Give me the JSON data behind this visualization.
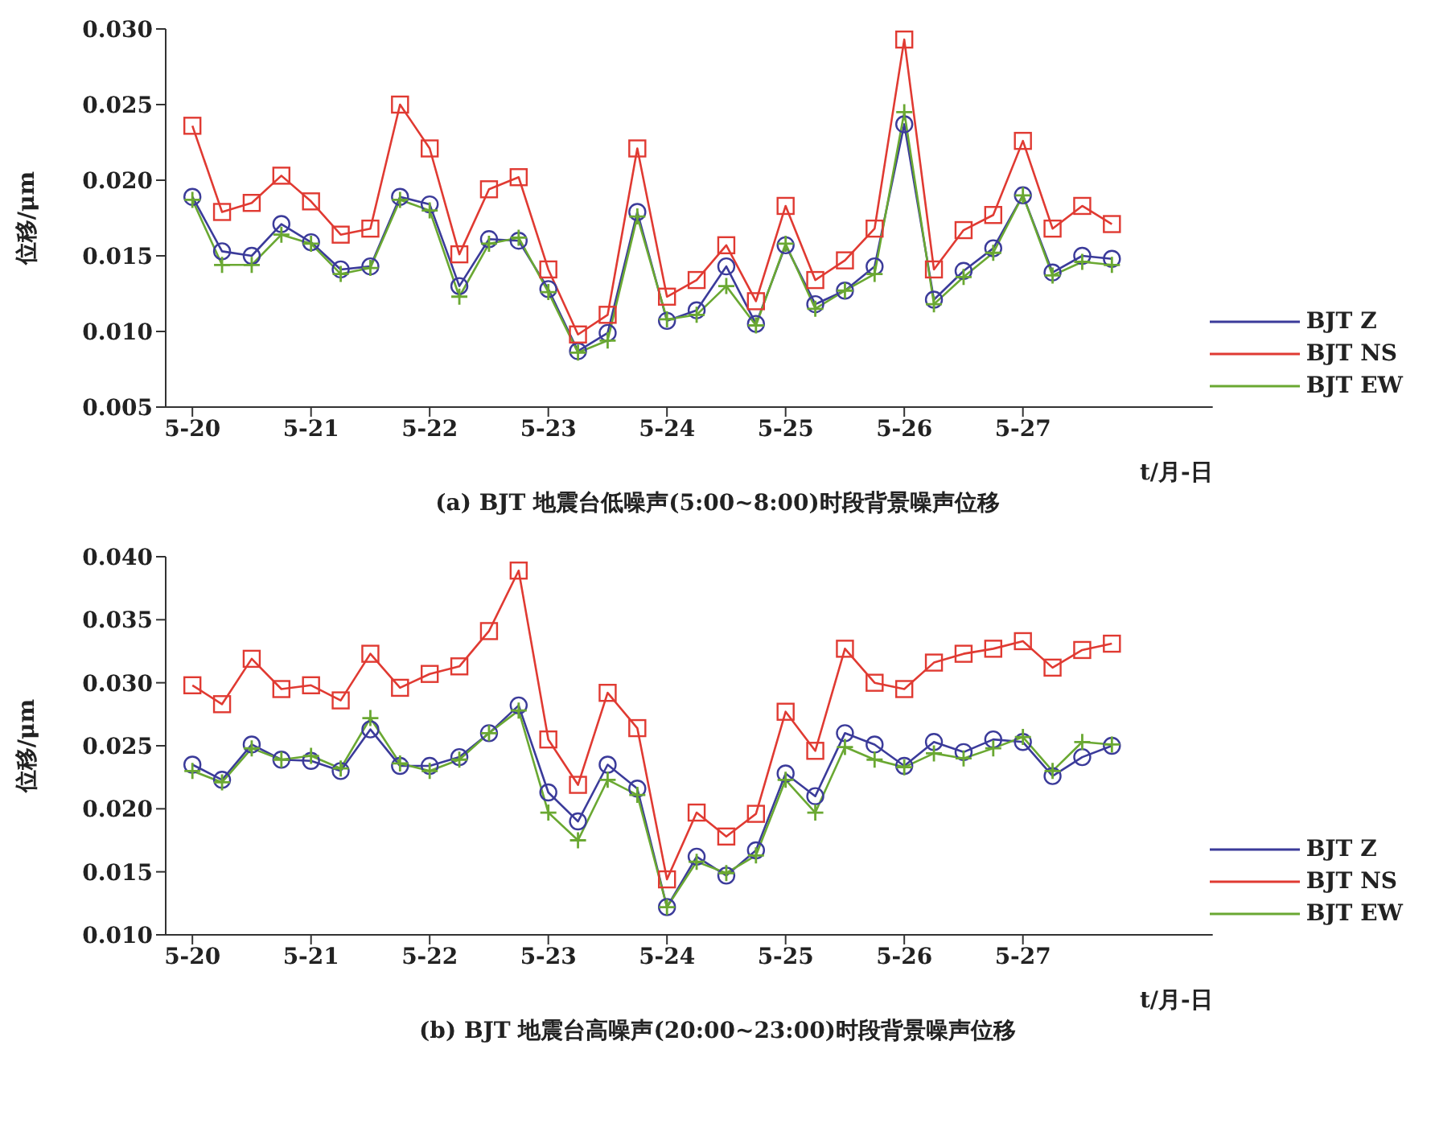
{
  "chart_data": [
    {
      "type": "line",
      "title": "(a) BJT 地震台低噪声(5:00~8:00)时段背景噪声位移",
      "xlabel": "t/月-日",
      "ylabel": "位移/μm",
      "categories": [
        "5-20",
        null,
        null,
        null,
        "5-21",
        null,
        null,
        null,
        "5-22",
        null,
        null,
        null,
        "5-23",
        null,
        null,
        null,
        "5-24",
        null,
        null,
        null,
        "5-25",
        null,
        null,
        null,
        "5-26",
        null,
        null,
        null,
        "5-27",
        null,
        null,
        null
      ],
      "series": [
        {
          "name": "BJT Z",
          "color": "#3b3b9a",
          "marker": "circle",
          "values": [
            0.0189,
            0.0153,
            0.015,
            0.0171,
            0.0159,
            0.0141,
            0.0143,
            0.0189,
            0.0184,
            0.013,
            0.0161,
            0.016,
            0.0128,
            0.0087,
            0.0099,
            0.0179,
            0.0107,
            0.0114,
            0.0143,
            0.0105,
            0.0157,
            0.0118,
            0.0127,
            0.0143,
            0.0237,
            0.0121,
            0.014,
            0.0155,
            0.019,
            0.0139,
            0.015,
            0.0148
          ]
        },
        {
          "name": "BJT NS",
          "color": "#e03a32",
          "marker": "square",
          "values": [
            0.0236,
            0.0179,
            0.0185,
            0.0203,
            0.0186,
            0.0164,
            0.0168,
            0.025,
            0.0221,
            0.0151,
            0.0194,
            0.0202,
            0.0141,
            0.0098,
            0.0111,
            0.0221,
            0.0123,
            0.0134,
            0.0157,
            0.012,
            0.0183,
            0.0134,
            0.0147,
            0.0168,
            0.0293,
            0.0141,
            0.0167,
            0.0177,
            0.0226,
            0.0168,
            0.0183,
            0.0171
          ]
        },
        {
          "name": "BJT EW",
          "color": "#6aa832",
          "marker": "cross",
          "values": [
            0.0187,
            0.0144,
            0.0144,
            0.0164,
            0.0158,
            0.0138,
            0.0142,
            0.0187,
            0.018,
            0.0123,
            0.0158,
            0.0162,
            0.0126,
            0.0086,
            0.0094,
            0.0176,
            0.0108,
            0.0111,
            0.013,
            0.0104,
            0.0158,
            0.0115,
            0.0127,
            0.0138,
            0.0245,
            0.0118,
            0.0136,
            0.0152,
            0.019,
            0.0137,
            0.0146,
            0.0144
          ]
        }
      ],
      "ylim": [
        0.005,
        0.03
      ],
      "yticks": [
        {
          "value": 0.005,
          "label": "0.005"
        },
        {
          "value": 0.01,
          "label": "0.010"
        },
        {
          "value": 0.015,
          "label": "0.015"
        },
        {
          "value": 0.02,
          "label": "0.020"
        },
        {
          "value": 0.025,
          "label": "0.025"
        },
        {
          "value": 0.03,
          "label": "0.030"
        }
      ],
      "legend": "bottom right",
      "line_style": "solid"
    },
    {
      "type": "line",
      "title": "(b) BJT 地震台高噪声(20:00~23:00)时段背景噪声位移",
      "xlabel": "t/月-日",
      "ylabel": "位移/μm",
      "categories": [
        "5-20",
        null,
        null,
        null,
        "5-21",
        null,
        null,
        null,
        "5-22",
        null,
        null,
        null,
        "5-23",
        null,
        null,
        null,
        "5-24",
        null,
        null,
        null,
        "5-25",
        null,
        null,
        null,
        "5-26",
        null,
        null,
        null,
        "5-27",
        null,
        null,
        null
      ],
      "series": [
        {
          "name": "BJT Z",
          "color": "#3b3b9a",
          "marker": "circle",
          "values": [
            0.0235,
            0.0223,
            0.0251,
            0.0239,
            0.0238,
            0.023,
            0.0263,
            0.0234,
            0.0234,
            0.0241,
            0.026,
            0.0282,
            0.0213,
            0.019,
            0.0235,
            0.0216,
            0.0122,
            0.0162,
            0.0147,
            0.0167,
            0.0228,
            0.021,
            0.026,
            0.0251,
            0.0234,
            0.0253,
            0.0245,
            0.0255,
            0.0253,
            0.0226,
            0.0241,
            0.025
          ]
        },
        {
          "name": "BJT NS",
          "color": "#e03a32",
          "marker": "square",
          "values": [
            0.0298,
            0.0283,
            0.0319,
            0.0295,
            0.0298,
            0.0286,
            0.0323,
            0.0296,
            0.0307,
            0.0313,
            0.0341,
            0.0389,
            0.0255,
            0.0219,
            0.0292,
            0.0264,
            0.0144,
            0.0197,
            0.0178,
            0.0196,
            0.0277,
            0.0246,
            0.0327,
            0.03,
            0.0295,
            0.0316,
            0.0323,
            0.0327,
            0.0333,
            0.0312,
            0.0326,
            0.0331
          ]
        },
        {
          "name": "BJT EW",
          "color": "#6aa832",
          "marker": "cross",
          "values": [
            0.023,
            0.0221,
            0.0248,
            0.0239,
            0.0242,
            0.0232,
            0.0272,
            0.0236,
            0.023,
            0.0239,
            0.026,
            0.0278,
            0.0197,
            0.0175,
            0.0223,
            0.0211,
            0.0122,
            0.0158,
            0.0149,
            0.0163,
            0.0223,
            0.0197,
            0.0249,
            0.0239,
            0.0233,
            0.0244,
            0.024,
            0.0248,
            0.0257,
            0.023,
            0.0253,
            0.0251
          ]
        }
      ],
      "ylim": [
        0.01,
        0.04
      ],
      "yticks": [
        {
          "value": 0.01,
          "label": "0.010"
        },
        {
          "value": 0.015,
          "label": "0.015"
        },
        {
          "value": 0.02,
          "label": "0.020"
        },
        {
          "value": 0.025,
          "label": "0.025"
        },
        {
          "value": 0.03,
          "label": "0.030"
        },
        {
          "value": 0.035,
          "label": "0.035"
        },
        {
          "value": 0.04,
          "label": "0.040"
        }
      ],
      "legend": "bottom right",
      "line_style": "solid"
    }
  ]
}
